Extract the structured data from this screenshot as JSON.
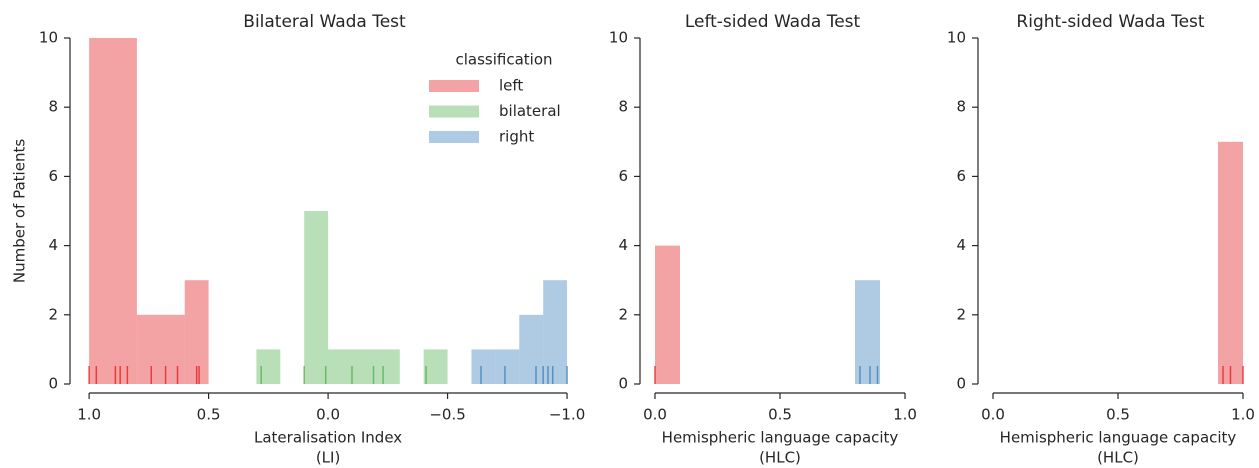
{
  "chart_data": [
    {
      "type": "histogram",
      "title": "Bilateral Wada Test",
      "xlabel": [
        "Lateralisation Index",
        "(LI)"
      ],
      "ylabel": "Number of Patients",
      "xlim": [
        1.08,
        -1.05
      ],
      "ylim": [
        0,
        10
      ],
      "xticks": [
        {
          "value": 1.0,
          "label": "1.0"
        },
        {
          "value": 0.5,
          "label": "0.5"
        },
        {
          "value": 0.0,
          "label": "0.0"
        },
        {
          "value": -0.5,
          "label": "−0.5"
        },
        {
          "value": -1.0,
          "label": "−1.0"
        }
      ],
      "yticks": [
        0,
        2,
        4,
        6,
        8,
        10
      ],
      "legend": "upper right",
      "legend_title": "classification",
      "series": [
        {
          "name": "left",
          "color": "#e41a1c",
          "bins": [
            0.5,
            0.6,
            0.8,
            1.0
          ],
          "values": [
            3,
            2,
            10
          ],
          "rug": [
            1.0,
            0.97,
            0.89,
            0.87,
            0.84,
            0.74,
            0.68,
            0.63,
            0.55,
            0.54
          ]
        },
        {
          "name": "bilateral",
          "color": "#4daf4a",
          "bins": [
            -0.5,
            -0.4,
            -0.3,
            -0.2,
            -0.1,
            0.0,
            0.1,
            0.2,
            0.3
          ],
          "values": [
            1,
            0,
            1,
            1,
            1,
            5,
            0,
            1
          ],
          "rug": [
            0.28,
            0.1,
            0.01,
            -0.1,
            -0.19,
            -0.23,
            -0.41
          ]
        },
        {
          "name": "right",
          "color": "#377eb8",
          "bins": [
            -1.0,
            -0.9,
            -0.8,
            -0.7,
            -0.6
          ],
          "values": [
            3,
            2,
            1,
            1
          ],
          "rug": [
            -0.64,
            -0.74,
            -0.87,
            -0.9,
            -0.92,
            -0.94,
            -1.0
          ]
        }
      ]
    },
    {
      "type": "histogram",
      "title": "Left-sided Wada Test",
      "xlabel": [
        "Hemispheric language capacity",
        "(HLC)"
      ],
      "xlim": [
        -0.06,
        1.0
      ],
      "ylim": [
        0,
        10
      ],
      "xticks": [
        {
          "value": 0.0,
          "label": "0.0"
        },
        {
          "value": 0.5,
          "label": "0.5"
        },
        {
          "value": 1.0,
          "label": "1.0"
        }
      ],
      "yticks": [
        0,
        2,
        4,
        6,
        8,
        10
      ],
      "series": [
        {
          "color": "#e41a1c",
          "bins": [
            0.0,
            0.1
          ],
          "values": [
            4
          ],
          "rug": [
            0.0
          ]
        },
        {
          "color": "#377eb8",
          "bins": [
            0.8,
            0.9
          ],
          "values": [
            3
          ],
          "rug": [
            0.82,
            0.86,
            0.89
          ]
        }
      ]
    },
    {
      "type": "histogram",
      "title": "Right-sided Wada Test",
      "xlabel": [
        "Hemispheric language capacity",
        "(HLC)"
      ],
      "xlim": [
        -0.06,
        1.0
      ],
      "ylim": [
        0,
        10
      ],
      "xticks": [
        {
          "value": 0.0,
          "label": "0.0"
        },
        {
          "value": 0.5,
          "label": "0.5"
        },
        {
          "value": 1.0,
          "label": "1.0"
        }
      ],
      "yticks": [
        0,
        2,
        4,
        6,
        8,
        10
      ],
      "series": [
        {
          "color": "#e41a1c",
          "bins": [
            0.9,
            1.0
          ],
          "values": [
            7
          ],
          "rug": [
            0.92,
            0.95,
            1.0
          ]
        }
      ]
    }
  ]
}
